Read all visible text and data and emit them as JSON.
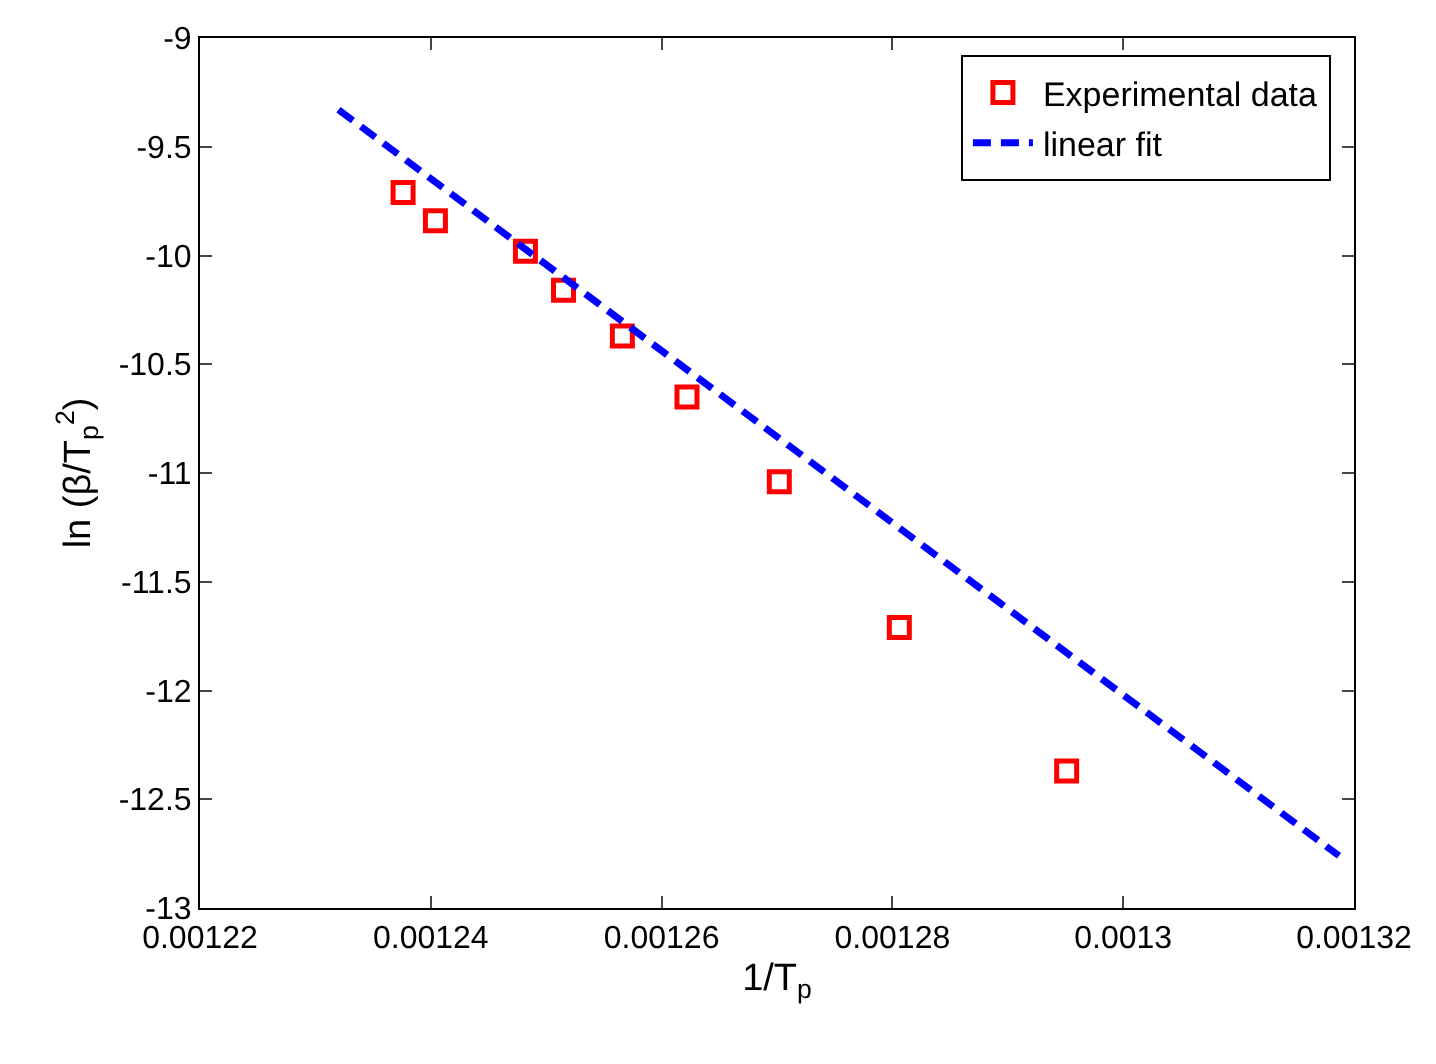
{
  "chart_data": {
    "type": "scatter",
    "xlabel": "1/T$_{p}$",
    "ylabel": "ln (β/T$_{p}$$^{2}$)",
    "xlim": [
      0.00122,
      0.00132
    ],
    "xticks": [
      0.00122,
      0.00124,
      0.00126,
      0.00128,
      0.0013,
      0.00132
    ],
    "ylim": [
      -13,
      -9
    ],
    "yticks": [
      -13,
      -12.5,
      -12,
      -11.5,
      -11,
      -10.5,
      -10,
      -9.5,
      -9
    ],
    "legend": "top right",
    "series": [
      {
        "name": "Experimental data",
        "marker": "square",
        "color": "#ff0000",
        "x": [
          0.0012376,
          0.0012404,
          0.0012482,
          0.0012515,
          0.0012566,
          0.0012622,
          0.0012702,
          0.0012806,
          0.0012951
        ],
        "values": [
          -9.71,
          -9.84,
          -9.98,
          -10.16,
          -10.37,
          -10.65,
          -11.04,
          -11.71,
          -12.37
        ]
      },
      {
        "name": "linear fit",
        "type": "line",
        "marker": "none",
        "line_style": "dashed",
        "color": "#0000ff",
        "x": [
          0.001232,
          0.0013187
        ],
        "values": [
          -9.33,
          -12.76
        ]
      }
    ]
  }
}
